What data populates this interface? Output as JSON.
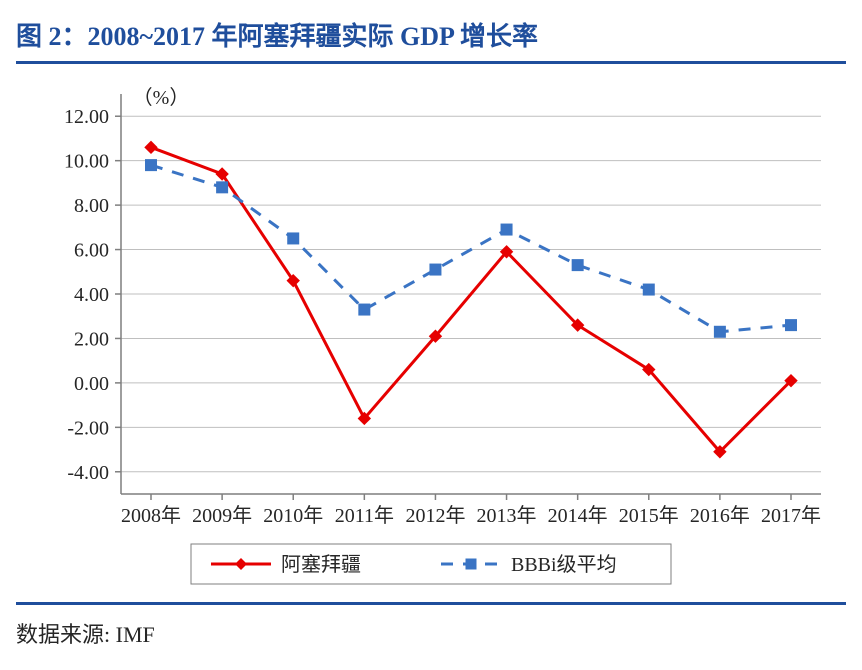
{
  "title": "图 2：2008~2017 年阿塞拜疆实际 GDP 增长率",
  "source_label": "数据来源: IMF",
  "chart": {
    "type": "line",
    "y_unit_label": "（%）",
    "categories": [
      "2008年",
      "2009年",
      "2010年",
      "2011年",
      "2012年",
      "2013年",
      "2014年",
      "2015年",
      "2016年",
      "2017年"
    ],
    "y_ticks": [
      -4.0,
      -2.0,
      0.0,
      2.0,
      4.0,
      6.0,
      8.0,
      10.0,
      12.0
    ],
    "ylim": [
      -5.0,
      13.0
    ],
    "series": [
      {
        "name": "阿塞拜疆",
        "color": "#e60000",
        "dash": "solid",
        "marker": "diamond",
        "line_width": 3,
        "marker_size": 12,
        "values": [
          10.6,
          9.4,
          4.6,
          -1.6,
          2.1,
          5.9,
          2.6,
          0.6,
          -3.1,
          0.1
        ]
      },
      {
        "name": "BBBi级平均",
        "color": "#3a74c4",
        "dash": "dashed",
        "marker": "square",
        "line_width": 3,
        "marker_size": 11,
        "values": [
          9.8,
          8.8,
          6.5,
          3.3,
          5.1,
          6.9,
          5.3,
          4.2,
          2.3,
          2.6
        ]
      }
    ],
    "axis_color": "#7f7f7f",
    "grid_color": "#bfbfbf",
    "tick_label_color": "#262626",
    "tick_fontsize": 20,
    "legend_fontsize": 20,
    "unit_fontsize": 20,
    "legend_border_color": "#7f7f7f",
    "background_color": "#ffffff"
  },
  "colors": {
    "title_color": "#1f4e9c",
    "rule_color": "#1f4e9c"
  }
}
